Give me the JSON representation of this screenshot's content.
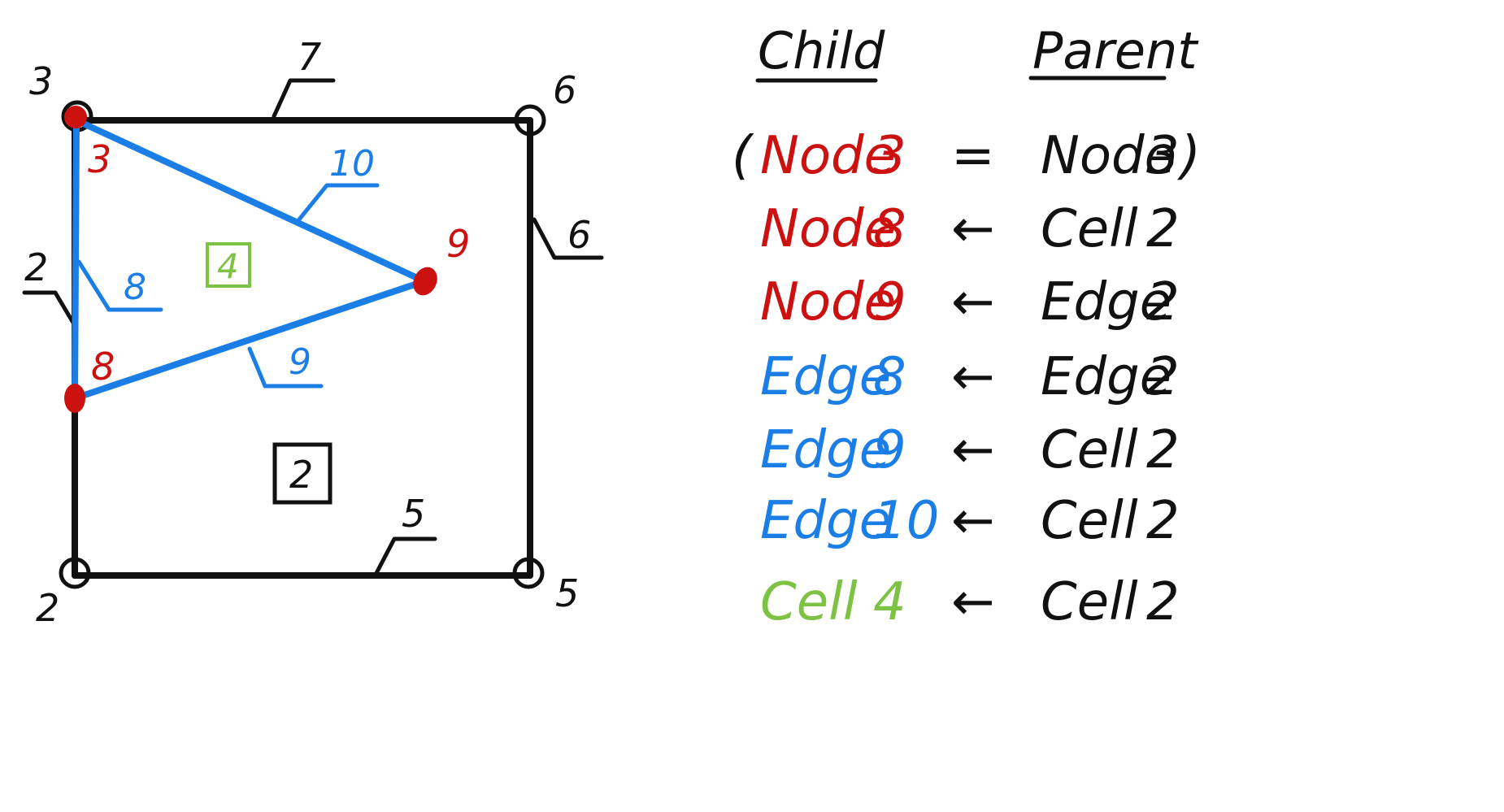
{
  "colors": {
    "black": "#111111",
    "red": "#cc1111",
    "blue": "#1a7ee6",
    "green": "#7dc242"
  },
  "diagram": {
    "outer_nodes": {
      "top_left": "3",
      "top_right": "6",
      "bottom_left": "2",
      "bottom_right": "5"
    },
    "outer_edges": {
      "top": "7",
      "right": "6",
      "left": "2",
      "bottom": "5"
    },
    "child_nodes": {
      "top": "3",
      "right": "9",
      "left": "8"
    },
    "child_edges": {
      "left": "8",
      "upper": "10",
      "lower": "9"
    },
    "child_cell": "4",
    "parent_cell": "2"
  },
  "table": {
    "header_child": "Child",
    "header_parent": "Parent",
    "rows": [
      {
        "open": "(",
        "child_word": "Node",
        "child_num": "3",
        "child_color": "red",
        "relation": "=",
        "parent_word": "Node",
        "parent_num": "3",
        "close": ")"
      },
      {
        "open": "",
        "child_word": "Node",
        "child_num": "8",
        "child_color": "red",
        "relation": "←",
        "parent_word": "Cell",
        "parent_num": "2",
        "close": ""
      },
      {
        "open": "",
        "child_word": "Node",
        "child_num": "9",
        "child_color": "red",
        "relation": "←",
        "parent_word": "Edge",
        "parent_num": "2",
        "close": ""
      },
      {
        "open": "",
        "child_word": "Edge",
        "child_num": "8",
        "child_color": "blue",
        "relation": "←",
        "parent_word": "Edge",
        "parent_num": "2",
        "close": ""
      },
      {
        "open": "",
        "child_word": "Edge",
        "child_num": "9",
        "child_color": "blue",
        "relation": "←",
        "parent_word": "Cell",
        "parent_num": "2",
        "close": ""
      },
      {
        "open": "",
        "child_word": "Edge",
        "child_num": "10",
        "child_color": "blue",
        "relation": "←",
        "parent_word": "Cell",
        "parent_num": "2",
        "close": ""
      },
      {
        "open": "",
        "child_word": "Cell",
        "child_num": "4",
        "child_color": "green",
        "relation": "←",
        "parent_word": "Cell",
        "parent_num": "2",
        "close": ""
      }
    ]
  }
}
